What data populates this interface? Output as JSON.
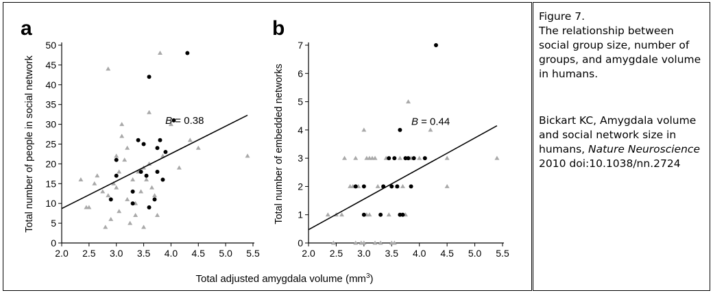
{
  "caption": {
    "figure_label": "Figure 7.",
    "title": "The relationship between social group size, number of groups, and amygdale volume in humans.",
    "citation_prefix": "Bickart KC, Amygdala volume and social network size in humans,",
    "journal": "Nature Neuroscience",
    "citation_suffix": "2010 doi:10.1038/nn.2724"
  },
  "shared_xlabel_main": "Total adjusted amygdala volume (mm",
  "shared_xlabel_sup": "3",
  "shared_xlabel_end": ")",
  "chart_data": [
    {
      "type": "scatter",
      "panel_label": "a",
      "ylabel": "Total number of people in social network",
      "xlim": [
        2.0,
        5.5
      ],
      "ylim": [
        0,
        50
      ],
      "xticks": [
        "2.0",
        "2.5",
        "3.0",
        "3.5",
        "4.0",
        "4.5",
        "5.0",
        "5.5"
      ],
      "yticks": [
        "0",
        "5",
        "10",
        "15",
        "20",
        "25",
        "30",
        "35",
        "40",
        "45",
        "50"
      ],
      "annotation": "B = 0.38",
      "fit_line": [
        [
          2.0,
          8.7
        ],
        [
          5.4,
          32.3
        ]
      ],
      "series": [
        {
          "marker": "triangle",
          "color": "#a9a9a9",
          "points": [
            [
              2.35,
              16
            ],
            [
              2.45,
              9
            ],
            [
              2.5,
              9
            ],
            [
              2.6,
              15
            ],
            [
              2.65,
              17
            ],
            [
              2.75,
              13
            ],
            [
              2.8,
              4
            ],
            [
              2.85,
              44
            ],
            [
              2.85,
              12
            ],
            [
              2.9,
              6
            ],
            [
              2.95,
              15
            ],
            [
              3.0,
              14
            ],
            [
              3.0,
              22
            ],
            [
              3.05,
              8
            ],
            [
              3.05,
              18
            ],
            [
              3.1,
              30
            ],
            [
              3.1,
              27
            ],
            [
              3.15,
              21
            ],
            [
              3.2,
              24
            ],
            [
              3.2,
              11
            ],
            [
              3.25,
              5
            ],
            [
              3.3,
              16
            ],
            [
              3.35,
              7
            ],
            [
              3.35,
              10
            ],
            [
              3.4,
              18
            ],
            [
              3.45,
              13
            ],
            [
              3.5,
              4
            ],
            [
              3.5,
              19
            ],
            [
              3.55,
              16
            ],
            [
              3.6,
              33
            ],
            [
              3.6,
              20
            ],
            [
              3.65,
              14
            ],
            [
              3.7,
              12
            ],
            [
              3.75,
              7
            ],
            [
              3.8,
              48
            ],
            [
              3.85,
              22
            ],
            [
              4.0,
              30
            ],
            [
              4.15,
              19
            ],
            [
              4.35,
              26
            ],
            [
              4.5,
              24
            ],
            [
              5.4,
              22
            ]
          ]
        },
        {
          "marker": "circle",
          "color": "#000000",
          "points": [
            [
              2.9,
              11
            ],
            [
              3.0,
              17
            ],
            [
              3.0,
              21
            ],
            [
              3.3,
              13
            ],
            [
              3.3,
              10
            ],
            [
              3.4,
              26
            ],
            [
              3.45,
              18
            ],
            [
              3.5,
              25
            ],
            [
              3.55,
              17
            ],
            [
              3.6,
              42
            ],
            [
              3.6,
              9
            ],
            [
              3.7,
              11
            ],
            [
              3.75,
              24
            ],
            [
              3.75,
              18
            ],
            [
              3.8,
              26
            ],
            [
              3.85,
              16
            ],
            [
              3.9,
              23
            ],
            [
              4.05,
              31
            ],
            [
              4.3,
              48
            ]
          ]
        }
      ]
    },
    {
      "type": "scatter",
      "panel_label": "b",
      "ylabel": "Total number of embedded networks",
      "xlim": [
        2.0,
        5.5
      ],
      "ylim": [
        0,
        7
      ],
      "xticks": [
        "2.0",
        "2.5",
        "3.0",
        "3.5",
        "4.0",
        "4.5",
        "5.0",
        "5.5"
      ],
      "yticks": [
        "0",
        "1",
        "2",
        "3",
        "4",
        "5",
        "6",
        "7"
      ],
      "annotation": "B = 0.44",
      "fit_line": [
        [
          2.0,
          0.47
        ],
        [
          5.4,
          4.15
        ]
      ],
      "series": [
        {
          "marker": "triangle",
          "color": "#a9a9a9",
          "points": [
            [
              2.35,
              1
            ],
            [
              2.45,
              0
            ],
            [
              2.5,
              1
            ],
            [
              2.6,
              1
            ],
            [
              2.65,
              3
            ],
            [
              2.75,
              2
            ],
            [
              2.8,
              2
            ],
            [
              2.85,
              3
            ],
            [
              2.85,
              0
            ],
            [
              2.9,
              2
            ],
            [
              2.95,
              0
            ],
            [
              3.0,
              4
            ],
            [
              3.0,
              0
            ],
            [
              3.05,
              1
            ],
            [
              3.05,
              3
            ],
            [
              3.1,
              1
            ],
            [
              3.1,
              3
            ],
            [
              3.15,
              3
            ],
            [
              3.2,
              3
            ],
            [
              3.2,
              0
            ],
            [
              3.25,
              2
            ],
            [
              3.3,
              0
            ],
            [
              3.35,
              2
            ],
            [
              3.4,
              3
            ],
            [
              3.45,
              1
            ],
            [
              3.5,
              0
            ],
            [
              3.55,
              0
            ],
            [
              3.6,
              2
            ],
            [
              3.65,
              3
            ],
            [
              3.7,
              2
            ],
            [
              3.75,
              1
            ],
            [
              3.8,
              5
            ],
            [
              3.85,
              3
            ],
            [
              4.0,
              3
            ],
            [
              4.2,
              4
            ],
            [
              4.5,
              3
            ],
            [
              4.5,
              2
            ],
            [
              5.4,
              3
            ]
          ]
        },
        {
          "marker": "circle",
          "color": "#000000",
          "points": [
            [
              2.85,
              2
            ],
            [
              3.0,
              1
            ],
            [
              3.0,
              2
            ],
            [
              3.3,
              1
            ],
            [
              3.35,
              2
            ],
            [
              3.45,
              3
            ],
            [
              3.5,
              2
            ],
            [
              3.55,
              3
            ],
            [
              3.6,
              2
            ],
            [
              3.65,
              4
            ],
            [
              3.65,
              1
            ],
            [
              3.7,
              1
            ],
            [
              3.75,
              3
            ],
            [
              3.8,
              3
            ],
            [
              3.85,
              2
            ],
            [
              3.9,
              3
            ],
            [
              4.1,
              3
            ],
            [
              4.3,
              7
            ]
          ]
        }
      ]
    }
  ]
}
